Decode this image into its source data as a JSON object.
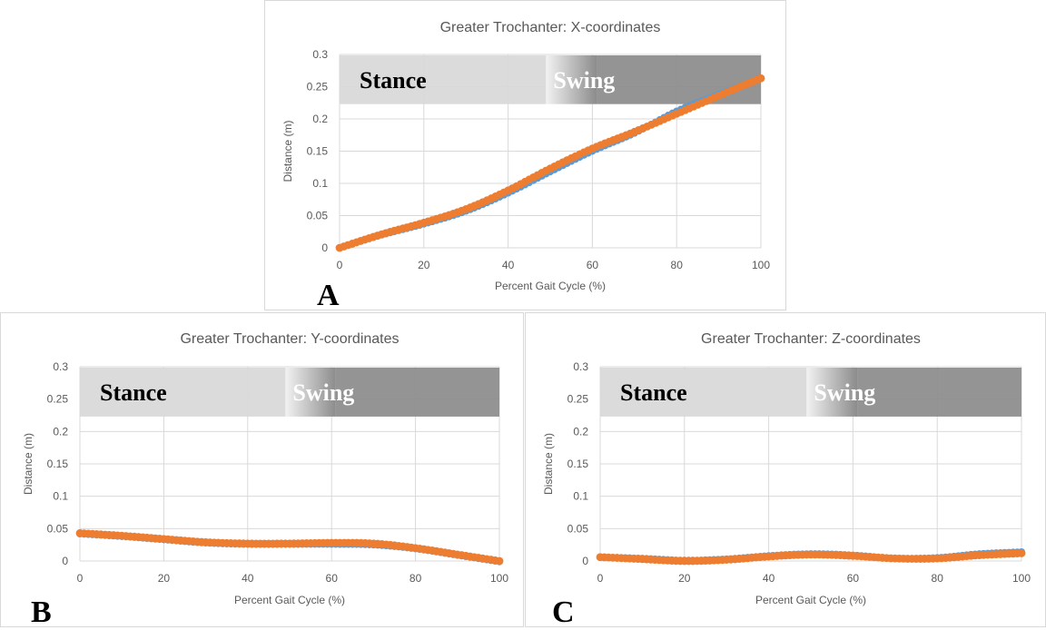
{
  "colors": {
    "series_blue": "#5b9bd5",
    "series_orange": "#ed7d31",
    "grid": "#d9d9d9",
    "axis_text": "#595959",
    "stance_band": "#d9d9d9",
    "swing_band": "#8c8c8c"
  },
  "chart_data": [
    {
      "panel_label": "A",
      "type": "scatter",
      "title": "Greater Trochanter: X-coordinates",
      "xlabel": "Percent Gait Cycle (%)",
      "ylabel": "Distance (m)",
      "xlim": [
        0,
        100
      ],
      "ylim": [
        0,
        0.3
      ],
      "xticks": [
        "0",
        "20",
        "40",
        "60",
        "80",
        "100"
      ],
      "yticks": [
        "0",
        "0.05",
        "0.1",
        "0.15",
        "0.2",
        "0.25",
        "0.3"
      ],
      "grid": true,
      "phases": [
        {
          "name": "Stance",
          "from": 0,
          "to": 49
        },
        {
          "name": "Swing",
          "from": 49,
          "to": 100
        }
      ],
      "series": [
        {
          "color": "#5b9bd5",
          "x": [
            0,
            10,
            20,
            30,
            40,
            50,
            60,
            70,
            80,
            90,
            100
          ],
          "y": [
            0.0,
            0.02,
            0.037,
            0.057,
            0.085,
            0.118,
            0.15,
            0.178,
            0.212,
            0.238,
            0.263
          ]
        },
        {
          "color": "#ed7d31",
          "x": [
            0,
            10,
            20,
            30,
            40,
            50,
            60,
            70,
            80,
            90,
            100
          ],
          "y": [
            0.0,
            0.021,
            0.039,
            0.06,
            0.089,
            0.123,
            0.154,
            0.18,
            0.208,
            0.236,
            0.263
          ]
        }
      ]
    },
    {
      "panel_label": "B",
      "type": "scatter",
      "title": "Greater Trochanter: Y-coordinates",
      "xlabel": "Percent Gait Cycle (%)",
      "ylabel": "Distance (m)",
      "xlim": [
        0,
        100
      ],
      "ylim": [
        0,
        0.3
      ],
      "xticks": [
        "0",
        "20",
        "40",
        "60",
        "80",
        "100"
      ],
      "yticks": [
        "0",
        "0.05",
        "0.1",
        "0.15",
        "0.2",
        "0.25",
        "0.3"
      ],
      "grid": true,
      "phases": [
        {
          "name": "Stance",
          "from": 0,
          "to": 49
        },
        {
          "name": "Swing",
          "from": 49,
          "to": 100
        }
      ],
      "series": [
        {
          "color": "#5b9bd5",
          "x": [
            0,
            10,
            20,
            30,
            40,
            50,
            60,
            70,
            80,
            90,
            100
          ],
          "y": [
            0.042,
            0.038,
            0.033,
            0.028,
            0.026,
            0.026,
            0.026,
            0.025,
            0.019,
            0.009,
            -0.001
          ]
        },
        {
          "color": "#ed7d31",
          "x": [
            0,
            10,
            20,
            30,
            40,
            50,
            60,
            70,
            80,
            90,
            100
          ],
          "y": [
            0.043,
            0.039,
            0.034,
            0.029,
            0.027,
            0.027,
            0.028,
            0.027,
            0.02,
            0.01,
            0.0
          ]
        }
      ]
    },
    {
      "panel_label": "C",
      "type": "scatter",
      "title": "Greater Trochanter: Z-coordinates",
      "xlabel": "Percent Gait Cycle (%)",
      "ylabel": "Distance (m)",
      "xlim": [
        0,
        100
      ],
      "ylim": [
        0,
        0.3
      ],
      "xticks": [
        "0",
        "20",
        "40",
        "60",
        "80",
        "100"
      ],
      "yticks": [
        "0",
        "0.05",
        "0.1",
        "0.15",
        "0.2",
        "0.25",
        "0.3"
      ],
      "grid": true,
      "phases": [
        {
          "name": "Stance",
          "from": 0,
          "to": 49
        },
        {
          "name": "Swing",
          "from": 49,
          "to": 100
        }
      ],
      "series": [
        {
          "color": "#5b9bd5",
          "x": [
            0,
            10,
            20,
            30,
            40,
            50,
            60,
            70,
            80,
            90,
            100
          ],
          "y": [
            0.006,
            0.004,
            0.001,
            0.003,
            0.008,
            0.011,
            0.009,
            0.004,
            0.005,
            0.011,
            0.014
          ]
        },
        {
          "color": "#ed7d31",
          "x": [
            0,
            10,
            20,
            30,
            40,
            50,
            60,
            70,
            80,
            90,
            100
          ],
          "y": [
            0.006,
            0.003,
            0.0,
            0.002,
            0.007,
            0.01,
            0.008,
            0.004,
            0.004,
            0.009,
            0.012
          ]
        }
      ]
    }
  ]
}
